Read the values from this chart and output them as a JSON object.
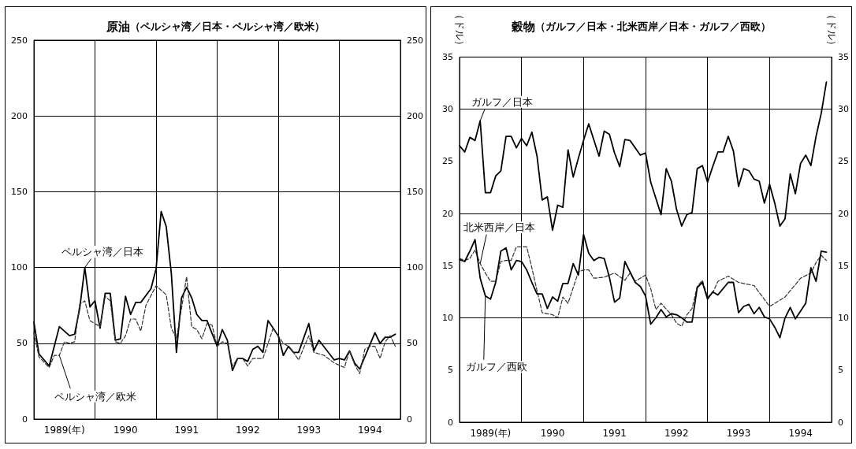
{
  "chart_data": [
    {
      "type": "line",
      "title": "原油",
      "subtitle": "（ペルシャ湾／日本・ペルシャ湾／欧米）",
      "grid": true,
      "xlim": [
        "1989-01",
        "1995-01"
      ],
      "xticks": [
        {
          "value": "1989-07",
          "label": "1989(年)"
        },
        {
          "value": "1990-01",
          "label": null
        },
        {
          "value": "1990-07",
          "label": "1990"
        },
        {
          "value": "1991-01",
          "label": null
        },
        {
          "value": "1991-07",
          "label": "1991"
        },
        {
          "value": "1992-01",
          "label": null
        },
        {
          "value": "1992-07",
          "label": "1992"
        },
        {
          "value": "1993-01",
          "label": null
        },
        {
          "value": "1993-07",
          "label": "1993"
        },
        {
          "value": "1994-01",
          "label": null
        },
        {
          "value": "1994-07",
          "label": "1994"
        }
      ],
      "ylim": [
        0,
        250
      ],
      "yticks": [
        0,
        50,
        100,
        150,
        200,
        250
      ],
      "y2lim": [
        0,
        250
      ],
      "y2ticks": [
        0,
        50,
        100,
        150,
        200,
        250
      ],
      "series": [
        {
          "name": "ペルシャ湾／日本",
          "color": "#000000",
          "line_style": "solid",
          "x": [
            "1989-01",
            "1989-02",
            "1989-04",
            "1989-06",
            "1989-08",
            "1989-09",
            "1989-10",
            "1989-11",
            "1989-12",
            "1990-01",
            "1990-02",
            "1990-03",
            "1990-04",
            "1990-05",
            "1990-06",
            "1990-07",
            "1990-08",
            "1990-09",
            "1990-10",
            "1990-12",
            "1991-01",
            "1991-02",
            "1991-03",
            "1991-04",
            "1991-05",
            "1991-06",
            "1991-07",
            "1991-08",
            "1991-09",
            "1991-10",
            "1991-11",
            "1992-01",
            "1992-02",
            "1992-03",
            "1992-04",
            "1992-05",
            "1992-06",
            "1992-07",
            "1992-08",
            "1992-09",
            "1992-10",
            "1992-11",
            "1993-01",
            "1993-02",
            "1993-03",
            "1993-04",
            "1993-05",
            "1993-07",
            "1993-08",
            "1993-09",
            "1993-12",
            "1994-01",
            "1994-02",
            "1994-03",
            "1994-04",
            "1994-05",
            "1994-08",
            "1994-09",
            "1994-10",
            "1994-11",
            "1994-12"
          ],
          "values": [
            64,
            43,
            35,
            61,
            55,
            56,
            73,
            100,
            74,
            78,
            60,
            83,
            83,
            52,
            53,
            81,
            69,
            77,
            77,
            86,
            99,
            137,
            127,
            96,
            44,
            80,
            87,
            80,
            69,
            65,
            65,
            48,
            59,
            52,
            32,
            40,
            40,
            38,
            46,
            48,
            44,
            65,
            55,
            42,
            48,
            44,
            44,
            63,
            45,
            52,
            39,
            40,
            39,
            45,
            37,
            33,
            57,
            50,
            54,
            54,
            56
          ]
        },
        {
          "name": "ペルシャ湾／欧米",
          "color": "#333333",
          "line_style": "dashed",
          "x": [
            "1989-01",
            "1989-02",
            "1989-04",
            "1989-05",
            "1989-06",
            "1989-07",
            "1989-08",
            "1989-09",
            "1989-10",
            "1989-11",
            "1989-12",
            "1990-02",
            "1990-03",
            "1990-04",
            "1990-05",
            "1990-06",
            "1990-07",
            "1990-08",
            "1990-09",
            "1990-10",
            "1990-11",
            "1991-01",
            "1991-03",
            "1991-04",
            "1991-05",
            "1991-06",
            "1991-07",
            "1991-08",
            "1991-09",
            "1991-10",
            "1991-11",
            "1991-12",
            "1992-01",
            "1992-02",
            "1992-03",
            "1992-04",
            "1992-05",
            "1992-06",
            "1992-07",
            "1992-08",
            "1992-10",
            "1992-12",
            "1993-02",
            "1993-03",
            "1993-04",
            "1993-05",
            "1993-07",
            "1993-08",
            "1993-09",
            "1993-10",
            "1993-12",
            "1994-02",
            "1994-03",
            "1994-04",
            "1994-05",
            "1994-06",
            "1994-07",
            "1994-08",
            "1994-09",
            "1994-10",
            "1994-11",
            "1994-12"
          ],
          "values": [
            57,
            41,
            34,
            42,
            42,
            51,
            50,
            51,
            76,
            78,
            65,
            61,
            81,
            78,
            51,
            50,
            55,
            66,
            66,
            58,
            75,
            88,
            82,
            60,
            53,
            73,
            94,
            61,
            59,
            53,
            63,
            62,
            48,
            51,
            50,
            35,
            40,
            40,
            35,
            40,
            40,
            60,
            50,
            48,
            44,
            39,
            55,
            44,
            43,
            42,
            37,
            34,
            45,
            36,
            30,
            46,
            48,
            48,
            40,
            51,
            55,
            48
          ]
        }
      ]
    },
    {
      "type": "line",
      "title": "穀物",
      "subtitle": "（ガルフ／日本・北米西岸／日本・ガルフ／西欧）",
      "ylabel": "（ドル）",
      "y2label": "（ドル）",
      "grid": true,
      "xlim": [
        "1989-01",
        "1995-01"
      ],
      "xticks": [
        {
          "value": "1989-07",
          "label": "1989(年)"
        },
        {
          "value": "1990-01",
          "label": null
        },
        {
          "value": "1990-07",
          "label": "1990"
        },
        {
          "value": "1991-01",
          "label": null
        },
        {
          "value": "1991-07",
          "label": "1991"
        },
        {
          "value": "1992-01",
          "label": null
        },
        {
          "value": "1992-07",
          "label": "1992"
        },
        {
          "value": "1993-01",
          "label": null
        },
        {
          "value": "1993-07",
          "label": "1993"
        },
        {
          "value": "1994-01",
          "label": null
        },
        {
          "value": "1994-07",
          "label": "1994"
        }
      ],
      "ylim": [
        0,
        35
      ],
      "yticks": [
        0,
        5,
        10,
        15,
        20,
        25,
        30,
        35
      ],
      "y2lim": [
        0,
        35
      ],
      "y2ticks": [
        0,
        5,
        10,
        15,
        20,
        25,
        30,
        35
      ],
      "series": [
        {
          "name": "ガルフ／日本",
          "color": "#000000",
          "line_style": "solid",
          "x": [
            "1989-01",
            "1989-02",
            "1989-03",
            "1989-04",
            "1989-05",
            "1989-06",
            "1989-07",
            "1989-08",
            "1989-09",
            "1989-10",
            "1989-11",
            "1989-12",
            "1990-01",
            "1990-02",
            "1990-03",
            "1990-04",
            "1990-05",
            "1990-06",
            "1990-07",
            "1990-08",
            "1990-09",
            "1990-10",
            "1990-11",
            "1990-12",
            "1991-01",
            "1991-02",
            "1991-04",
            "1991-05",
            "1991-06",
            "1991-07",
            "1991-08",
            "1991-09",
            "1991-10",
            "1991-12",
            "1992-01",
            "1992-02",
            "1992-04",
            "1992-05",
            "1992-06",
            "1992-07",
            "1992-08",
            "1992-09",
            "1992-10",
            "1992-11",
            "1992-12",
            "1993-01",
            "1993-02",
            "1993-03",
            "1993-04",
            "1993-05",
            "1993-06",
            "1993-07",
            "1993-08",
            "1993-09",
            "1993-10",
            "1993-11",
            "1993-12",
            "1994-01",
            "1994-02",
            "1994-03",
            "1994-04",
            "1994-05",
            "1994-06",
            "1994-07",
            "1994-08",
            "1994-09",
            "1994-10",
            "1994-11",
            "1994-12"
          ],
          "values": [
            26.5,
            25.9,
            27.3,
            27.0,
            28.9,
            22.0,
            22.0,
            23.6,
            24.1,
            27.4,
            27.4,
            26.3,
            27.2,
            26.5,
            27.8,
            25.5,
            21.3,
            21.6,
            18.4,
            20.8,
            20.6,
            26.1,
            23.5,
            25.3,
            27.0,
            28.6,
            25.5,
            27.9,
            27.6,
            25.8,
            24.5,
            27.1,
            27.0,
            25.6,
            25.8,
            23.0,
            19.9,
            24.3,
            23.1,
            20.4,
            18.8,
            19.9,
            20.1,
            24.3,
            24.6,
            23.0,
            24.5,
            25.9,
            25.9,
            27.4,
            26.0,
            22.6,
            24.3,
            24.1,
            23.3,
            23.1,
            21.0,
            22.8,
            21.0,
            18.8,
            19.5,
            23.8,
            21.9,
            24.8,
            25.6,
            24.6,
            27.4,
            29.6,
            32.6
          ]
        },
        {
          "name": "北米西岸／日本",
          "color": "#333333",
          "line_style": "dashed",
          "x": [
            "1989-01",
            "1989-02",
            "1989-03",
            "1989-04",
            "1989-05",
            "1989-06",
            "1989-07",
            "1989-08",
            "1989-09",
            "1989-10",
            "1989-11",
            "1989-12",
            "1990-02",
            "1990-03",
            "1990-04",
            "1990-05",
            "1990-07",
            "1990-08",
            "1990-09",
            "1990-10",
            "1990-12",
            "1991-01",
            "1991-02",
            "1991-03",
            "1991-05",
            "1991-07",
            "1991-09",
            "1991-10",
            "1991-11",
            "1992-01",
            "1992-02",
            "1992-03",
            "1992-04",
            "1992-06",
            "1992-07",
            "1992-08",
            "1992-09",
            "1992-10",
            "1992-11",
            "1992-12",
            "1993-01",
            "1993-02",
            "1993-03",
            "1993-05",
            "1993-07",
            "1993-10",
            "1994-01",
            "1994-04",
            "1994-07",
            "1994-09",
            "1994-10",
            "1994-11",
            "1994-12"
          ],
          "values": [
            15.7,
            15.5,
            15.7,
            16.5,
            15.2,
            14.3,
            13.5,
            13.5,
            15.4,
            15.5,
            15.5,
            16.8,
            16.8,
            14.8,
            12.6,
            10.5,
            10.3,
            10.0,
            12.0,
            11.4,
            14.4,
            14.6,
            14.6,
            13.8,
            13.9,
            14.3,
            13.6,
            14.3,
            13.5,
            14.1,
            12.8,
            10.8,
            11.4,
            10.3,
            9.5,
            9.2,
            10.3,
            10.9,
            13.0,
            13.6,
            12.0,
            12.4,
            13.5,
            14.0,
            13.4,
            13.1,
            11.1,
            12.0,
            13.8,
            14.3,
            15.3,
            16.0,
            15.5
          ]
        },
        {
          "name": "ガルフ／西欧",
          "color": "#000000",
          "line_style": "solid",
          "x": [
            "1989-01",
            "1989-02",
            "1989-03",
            "1989-04",
            "1989-05",
            "1989-06",
            "1989-07",
            "1989-08",
            "1989-09",
            "1989-10",
            "1989-11",
            "1989-12",
            "1990-01",
            "1990-02",
            "1990-03",
            "1990-04",
            "1990-05",
            "1990-06",
            "1990-07",
            "1990-08",
            "1990-09",
            "1990-10",
            "1990-11",
            "1990-12",
            "1991-01",
            "1991-02",
            "1991-03",
            "1991-04",
            "1991-05",
            "1991-06",
            "1991-07",
            "1991-08",
            "1991-09",
            "1991-10",
            "1991-11",
            "1991-12",
            "1992-01",
            "1992-02",
            "1992-03",
            "1992-04",
            "1992-05",
            "1992-06",
            "1992-07",
            "1992-08",
            "1992-09",
            "1992-10",
            "1992-11",
            "1992-12",
            "1993-01",
            "1993-02",
            "1993-03",
            "1993-05",
            "1993-06",
            "1993-07",
            "1993-08",
            "1993-09",
            "1993-10",
            "1993-11",
            "1993-12",
            "1994-01",
            "1994-02",
            "1994-03",
            "1994-04",
            "1994-05",
            "1994-06",
            "1994-08",
            "1994-09",
            "1994-10",
            "1994-11",
            "1994-12"
          ],
          "values": [
            15.6,
            15.4,
            16.4,
            17.5,
            13.8,
            12.1,
            11.8,
            13.4,
            16.4,
            16.7,
            14.6,
            15.5,
            15.4,
            14.6,
            13.4,
            12.3,
            12.3,
            10.9,
            12.0,
            11.6,
            13.3,
            13.3,
            15.2,
            14.1,
            18.0,
            16.2,
            15.5,
            15.8,
            15.7,
            13.9,
            11.5,
            11.9,
            15.4,
            14.4,
            13.4,
            13.0,
            12.1,
            9.4,
            10.0,
            10.8,
            10.1,
            10.4,
            10.3,
            10.0,
            9.6,
            9.6,
            12.9,
            13.4,
            11.8,
            12.5,
            12.2,
            13.4,
            13.4,
            10.5,
            11.1,
            11.3,
            10.4,
            11.0,
            10.1,
            9.9,
            9.1,
            8.1,
            10.0,
            11.0,
            9.9,
            11.4,
            14.8,
            13.5,
            16.4,
            16.3
          ]
        }
      ]
    }
  ]
}
